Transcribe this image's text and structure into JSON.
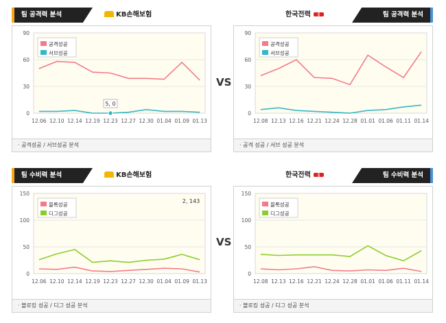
{
  "vs_label": "VS",
  "panels": [
    {
      "id": "p1",
      "header_tab": "팀 공격력 분석",
      "team": "KB손해보험",
      "footer": "· 공격성공 / 서브성공 분석",
      "colors": {
        "s1": "#f37a89",
        "s2": "#35b6c4"
      }
    },
    {
      "id": "p2",
      "header_tab": "팀 공격력 분석",
      "team": "한국전력",
      "footer": "· 공격 성공 / 서브 성공 분석",
      "colors": {
        "s1": "#f37a89",
        "s2": "#35b6c4"
      }
    },
    {
      "id": "p3",
      "header_tab": "팀 수비력 분석",
      "team": "KB손해보험",
      "footer": "· 블로킹 성공 / 디그 성공 분석",
      "colors": {
        "s1": "#f37a89",
        "s2": "#8ccc2a"
      }
    },
    {
      "id": "p4",
      "header_tab": "팀 수비력 분석",
      "team": "한국전력",
      "footer": "· 블로킹 성공 / 디그 성공 분석",
      "colors": {
        "s1": "#f37a89",
        "s2": "#8ccc2a"
      }
    }
  ],
  "chart_data": [
    {
      "type": "line",
      "categories": [
        "12.06",
        "12.10",
        "12.14",
        "12.19",
        "12.23",
        "12.27",
        "12.30",
        "01.04",
        "01.09",
        "01.13"
      ],
      "series": [
        {
          "name": "공격성공",
          "values": [
            50,
            58,
            57,
            46,
            45,
            39,
            39,
            38,
            57,
            37
          ]
        },
        {
          "name": "서브성공",
          "values": [
            2,
            2,
            3,
            0,
            0,
            1,
            4,
            2,
            2,
            1
          ]
        }
      ],
      "ylim": [
        0,
        90
      ],
      "yticks": [
        0,
        30,
        60,
        90
      ],
      "annotation": {
        "text": "5, 0",
        "index": 4,
        "series": 1
      }
    },
    {
      "type": "line",
      "categories": [
        "12.08",
        "12.13",
        "12.16",
        "12.21",
        "12.24",
        "12.28",
        "01.01",
        "01.06",
        "01.11",
        "01.14"
      ],
      "series": [
        {
          "name": "공격성공",
          "values": [
            42,
            50,
            60,
            40,
            39,
            32,
            65,
            52,
            40,
            69
          ]
        },
        {
          "name": "서브성공",
          "values": [
            4,
            6,
            3,
            2,
            1,
            0,
            3,
            4,
            7,
            9
          ]
        }
      ],
      "ylim": [
        0,
        90
      ],
      "yticks": [
        0,
        30,
        60,
        90
      ]
    },
    {
      "type": "line",
      "categories": [
        "12.06",
        "12.10",
        "12.14",
        "12.19",
        "12.23",
        "12.27",
        "12.30",
        "01.04",
        "01.09",
        "01.13"
      ],
      "series": [
        {
          "name": "블록성공",
          "values": [
            9,
            8,
            12,
            5,
            4,
            6,
            8,
            10,
            9,
            3
          ]
        },
        {
          "name": "디그성공",
          "values": [
            26,
            37,
            45,
            21,
            24,
            21,
            25,
            27,
            36,
            26
          ]
        }
      ],
      "ylim": [
        0,
        150
      ],
      "yticks": [
        0,
        50,
        100,
        150
      ],
      "annotation": {
        "text": "2, 143",
        "index": 9,
        "series": 1,
        "fixed_top": true
      }
    },
    {
      "type": "line",
      "categories": [
        "12.08",
        "12.13",
        "12.16",
        "12.21",
        "12.24",
        "12.28",
        "01.01",
        "01.06",
        "01.11",
        "01.14"
      ],
      "series": [
        {
          "name": "블록성공",
          "values": [
            9,
            7,
            9,
            13,
            6,
            5,
            7,
            6,
            10,
            4
          ]
        },
        {
          "name": "디그성공",
          "values": [
            36,
            34,
            35,
            35,
            35,
            32,
            52,
            34,
            24,
            43
          ]
        }
      ],
      "ylim": [
        0,
        150
      ],
      "yticks": [
        0,
        50,
        100,
        150
      ]
    }
  ]
}
